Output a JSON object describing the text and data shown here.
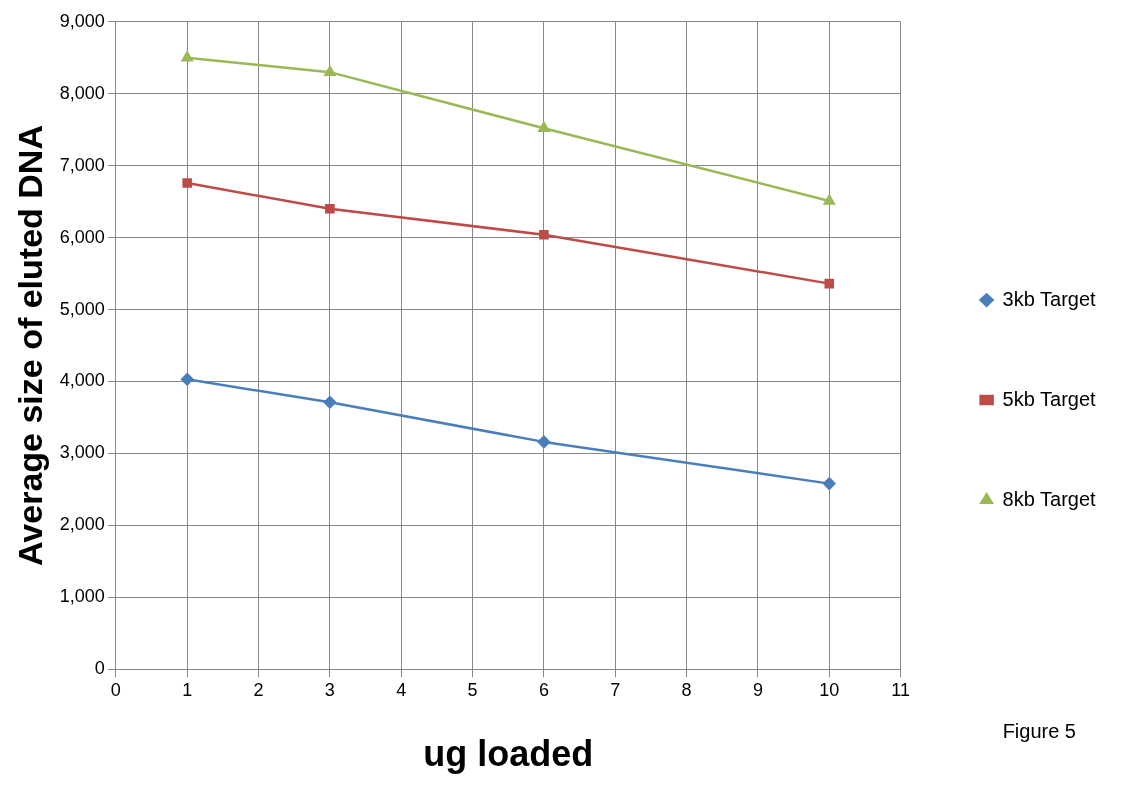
{
  "chart_data": {
    "type": "line",
    "xlabel": "ug loaded",
    "ylabel": "Average size of eluted DNA",
    "x": [
      1,
      3,
      6,
      10
    ],
    "series": [
      {
        "name": "3kb Target",
        "color": "#4a7ebb",
        "marker": "diamond",
        "values": [
          4030,
          3710,
          3160,
          2580
        ]
      },
      {
        "name": "5kb Target",
        "color": "#be4b48",
        "marker": "square",
        "values": [
          6760,
          6400,
          6040,
          5360
        ]
      },
      {
        "name": "8kb Target",
        "color": "#98b954",
        "marker": "triangle",
        "values": [
          8500,
          8300,
          7520,
          6510
        ]
      }
    ],
    "xlim": [
      0,
      11
    ],
    "xticks": [
      0,
      1,
      2,
      3,
      4,
      5,
      6,
      7,
      8,
      9,
      10,
      11
    ],
    "ylim": [
      0,
      9000
    ],
    "yticks": [
      {
        "value": 0,
        "label": "0"
      },
      {
        "value": 1000,
        "label": "1,000"
      },
      {
        "value": 2000,
        "label": "2,000"
      },
      {
        "value": 3000,
        "label": "3,000"
      },
      {
        "value": 4000,
        "label": "4,000"
      },
      {
        "value": 5000,
        "label": "5,000"
      },
      {
        "value": 6000,
        "label": "6,000"
      },
      {
        "value": 7000,
        "label": "7,000"
      },
      {
        "value": 8000,
        "label": "8,000"
      },
      {
        "value": 9000,
        "label": "9,000"
      }
    ],
    "grid": true,
    "legend": "right",
    "line_style": "solid",
    "annotations": [
      "Figure 5"
    ]
  }
}
